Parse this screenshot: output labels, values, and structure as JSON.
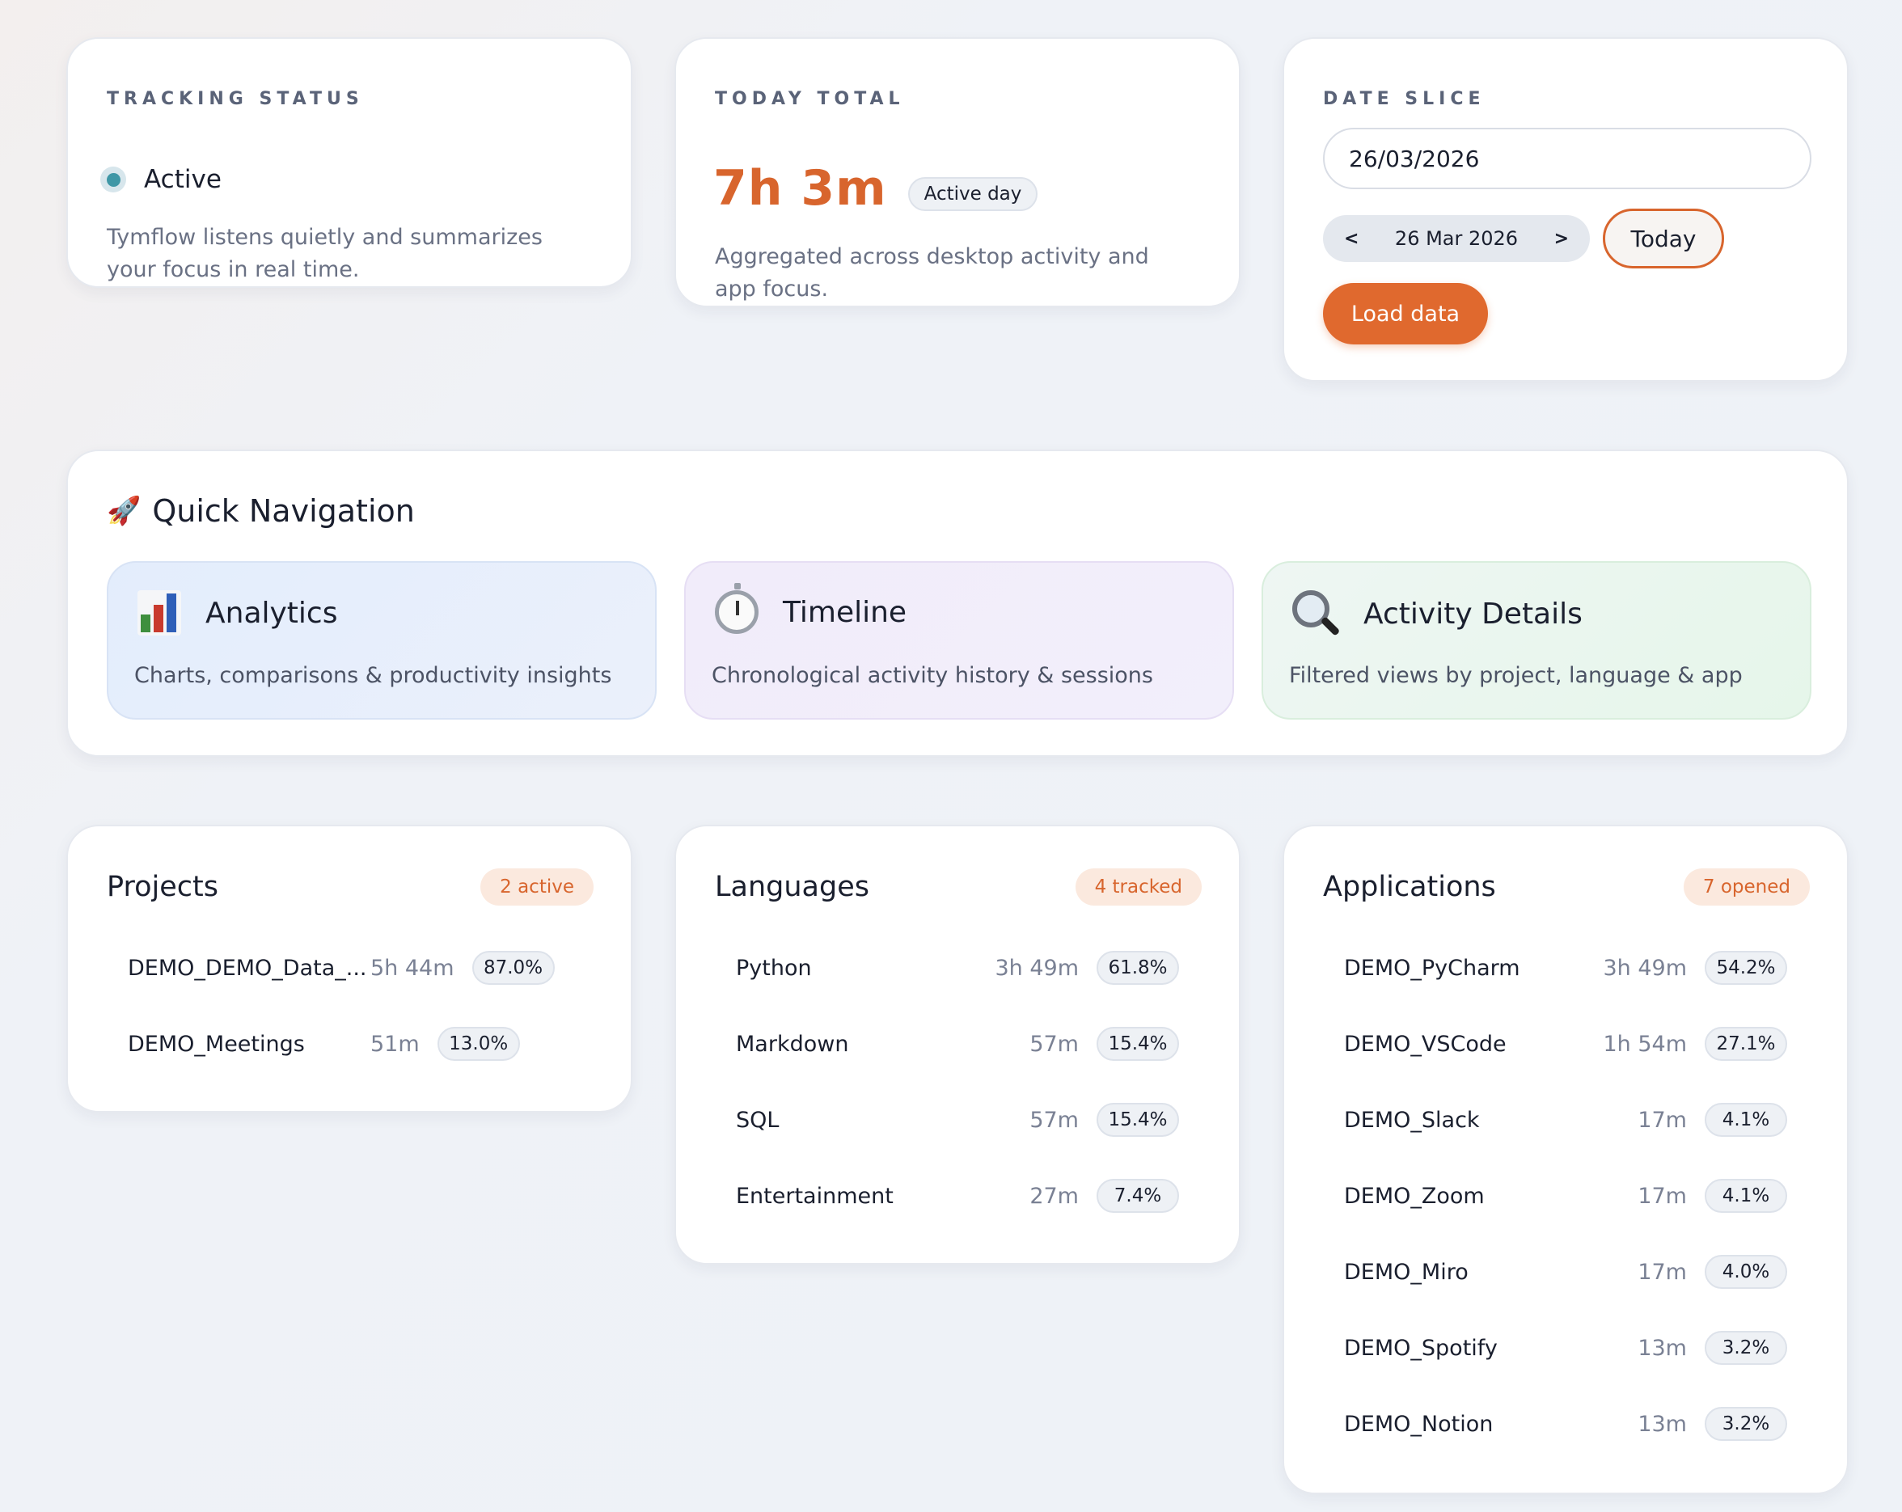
{
  "tracking_status": {
    "kicker": "TRACKING STATUS",
    "status_label": "Active",
    "description_line1": "Tymflow listens quietly and summarizes",
    "description_line2": "your focus in real time."
  },
  "today_total": {
    "kicker": "TODAY TOTAL",
    "value": "7h 3m",
    "badge": "Active day",
    "description_line1": "Aggregated across desktop activity and",
    "description_line2": "app focus."
  },
  "date_slice": {
    "kicker": "DATE SLICE",
    "date_value": "26/03/2026",
    "prev_label": "<",
    "current_label": "26 Mar 2026",
    "next_label": ">",
    "today_label": "Today",
    "load_label": "Load data"
  },
  "quick_navigation": {
    "title": "Quick Navigation",
    "rocket_icon": "rocket-icon",
    "tiles": [
      {
        "title": "Analytics",
        "description": "Charts, comparisons & productivity insights",
        "icon": "bar-chart-icon"
      },
      {
        "title": "Timeline",
        "description": "Chronological activity history & sessions",
        "icon": "stopwatch-icon"
      },
      {
        "title": "Activity Details",
        "description": "Filtered views by project, language & app",
        "icon": "magnifier-icon"
      }
    ]
  },
  "projects": {
    "title": "Projects",
    "badge": "2 active",
    "rows": [
      {
        "name": "DEMO_DEMO_Data_...",
        "duration": "5h 44m",
        "percent": "87.0%"
      },
      {
        "name": "DEMO_Meetings",
        "duration": "51m",
        "percent": "13.0%"
      }
    ]
  },
  "languages": {
    "title": "Languages",
    "badge": "4 tracked",
    "rows": [
      {
        "name": "Python",
        "duration": "3h 49m",
        "percent": "61.8%"
      },
      {
        "name": "Markdown",
        "duration": "57m",
        "percent": "15.4%"
      },
      {
        "name": "SQL",
        "duration": "57m",
        "percent": "15.4%"
      },
      {
        "name": "Entertainment",
        "duration": "27m",
        "percent": "7.4%"
      }
    ]
  },
  "applications": {
    "title": "Applications",
    "badge": "7 opened",
    "rows": [
      {
        "name": "DEMO_PyCharm",
        "duration": "3h 49m",
        "percent": "54.2%"
      },
      {
        "name": "DEMO_VSCode",
        "duration": "1h 54m",
        "percent": "27.1%"
      },
      {
        "name": "DEMO_Slack",
        "duration": "17m",
        "percent": "4.1%"
      },
      {
        "name": "DEMO_Zoom",
        "duration": "17m",
        "percent": "4.1%"
      },
      {
        "name": "DEMO_Miro",
        "duration": "17m",
        "percent": "4.0%"
      },
      {
        "name": "DEMO_Spotify",
        "duration": "13m",
        "percent": "3.2%"
      },
      {
        "name": "DEMO_Notion",
        "duration": "13m",
        "percent": "3.2%"
      }
    ]
  },
  "colors": {
    "accent": "#e0692e",
    "status_active": "#3f97a6"
  }
}
